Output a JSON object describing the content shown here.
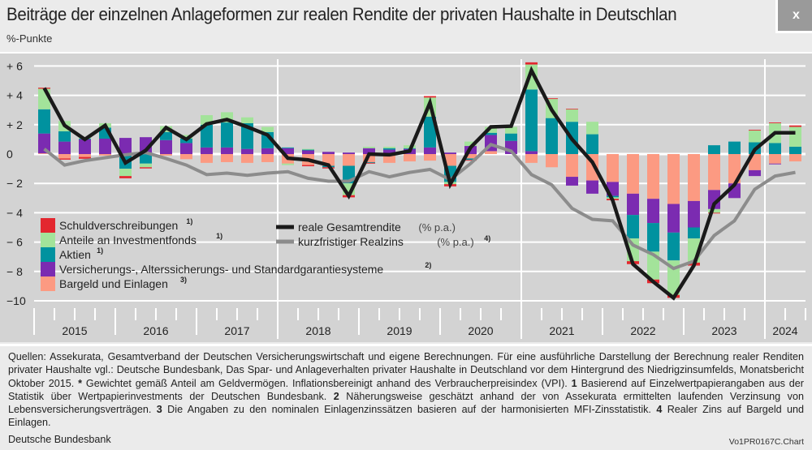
{
  "header": {
    "title": "Beiträge der einzelnen Anlageformen zur realen Rendite der privaten Haushalte in Deutschlan",
    "close_label": "x"
  },
  "chart_data": {
    "type": "bar",
    "stacked": true,
    "title": "Beiträge der einzelnen Anlageformen zur realen Rendite der privaten Haushalte in Deutschlan",
    "ylabel": "%-Punkte",
    "ylim": [
      -10,
      6
    ],
    "yticks": [
      6,
      4,
      2,
      0,
      -2,
      -4,
      -6,
      -8,
      -10
    ],
    "ytick_labels": [
      "+ 6",
      "+ 4",
      "+ 2",
      "0",
      "− 2",
      "− 4",
      "− 6",
      "− 8",
      "−10"
    ],
    "years": [
      "2015",
      "2016",
      "2017",
      "2018",
      "2019",
      "2020",
      "2021",
      "2022",
      "2023",
      "2024"
    ],
    "categories": [
      "2015Q1",
      "2015Q2",
      "2015Q3",
      "2015Q4",
      "2016Q1",
      "2016Q2",
      "2016Q3",
      "2016Q4",
      "2017Q1",
      "2017Q2",
      "2017Q3",
      "2017Q4",
      "2018Q1",
      "2018Q2",
      "2018Q3",
      "2018Q4",
      "2019Q1",
      "2019Q2",
      "2019Q3",
      "2019Q4",
      "2020Q1",
      "2020Q2",
      "2020Q3",
      "2020Q4",
      "2021Q1",
      "2021Q2",
      "2021Q3",
      "2021Q4",
      "2022Q1",
      "2022Q2",
      "2022Q3",
      "2022Q4",
      "2023Q1",
      "2023Q2",
      "2023Q3",
      "2023Q4",
      "2024Q1",
      "2024Q2"
    ],
    "grid": true,
    "legend_placement": "bottom-left",
    "series": [
      {
        "name": "Bargeld und Einlagen",
        "sup": "3)",
        "color": "#fc9a82",
        "values": [
          0.05,
          -0.3,
          -0.2,
          -0.1,
          0,
          0,
          -0.1,
          -0.35,
          -0.6,
          -0.55,
          -0.6,
          -0.55,
          -0.65,
          -0.75,
          -0.8,
          -0.8,
          -0.55,
          -0.6,
          -0.5,
          -0.45,
          -0.8,
          -0.3,
          0.2,
          0,
          -0.6,
          -0.9,
          -1.55,
          -1.8,
          -1.9,
          -2.7,
          -3.05,
          -3.4,
          -3.2,
          -2.45,
          -2.0,
          -1.1,
          -0.65,
          -0.5
        ]
      },
      {
        "name": "Versicherungs-, Alterssicherungs- und Standardgarantiesysteme",
        "sup": "2)",
        "color": "#7b2bb1",
        "values": [
          1.35,
          0.85,
          1.0,
          1.05,
          1.1,
          1.15,
          0.95,
          0.75,
          0.45,
          0.45,
          0.35,
          0.4,
          0.4,
          0.25,
          0.15,
          0.1,
          0.4,
          0.3,
          0.35,
          0.45,
          0.1,
          0.55,
          1.1,
          0.9,
          0.2,
          0,
          -0.6,
          -0.9,
          -0.95,
          -1.45,
          -1.65,
          -1.95,
          -1.8,
          -1.3,
          -1.0,
          -0.4,
          -0.05,
          0
        ]
      },
      {
        "name": "Aktien",
        "sup": "1)",
        "color": "#00929f",
        "values": [
          1.65,
          0.7,
          0.05,
          0.75,
          -1.0,
          -0.65,
          0.55,
          0.3,
          1.55,
          1.7,
          1.75,
          1.1,
          0.05,
          0.05,
          -0.1,
          -1.2,
          -0.05,
          0.1,
          0.05,
          2.1,
          -1.1,
          -0.1,
          0.15,
          0.5,
          4.2,
          2.45,
          2.2,
          1.35,
          -0.1,
          -1.6,
          -1.95,
          -1.9,
          -0.75,
          0.6,
          0.85,
          0.8,
          0.75,
          0.5
        ]
      },
      {
        "name": "Anteile an Investmentfonds",
        "sup": "1)",
        "color": "#a3e39a",
        "values": [
          1.4,
          0.7,
          0.05,
          0.3,
          -0.5,
          -0.25,
          0.4,
          0.25,
          0.65,
          0.7,
          0.4,
          0.35,
          -0.1,
          0.05,
          0,
          -0.8,
          0.1,
          0.1,
          0.2,
          1.3,
          -0.15,
          0.3,
          0.4,
          0.45,
          1.7,
          1.3,
          0.85,
          0.85,
          -0.1,
          -1.55,
          -1.9,
          -2.35,
          -1.65,
          -0.25,
          0,
          0.8,
          1.35,
          1.35
        ]
      },
      {
        "name": "Schuldverschreibungen",
        "sup": "1)",
        "color": "#e3272f",
        "values": [
          0.07,
          -0.08,
          -0.12,
          0,
          -0.15,
          -0.08,
          0,
          0,
          0,
          0,
          0,
          0,
          0,
          -0.08,
          -0.08,
          -0.15,
          -0.05,
          0,
          0,
          0.1,
          -0.15,
          -0.05,
          0,
          0,
          0.15,
          0.05,
          0.03,
          0,
          -0.1,
          -0.2,
          -0.25,
          -0.2,
          -0.2,
          -0.05,
          0,
          0.05,
          0.05,
          0.1
        ]
      }
    ],
    "lines": [
      {
        "name": "reale Gesamtrendite",
        "unit": "(% p.a.)",
        "sup": "",
        "color": "#1a1a1a",
        "values": [
          4.5,
          1.95,
          1.0,
          1.95,
          -0.6,
          0.25,
          1.8,
          1.0,
          2.05,
          2.35,
          1.85,
          1.3,
          -0.28,
          -0.4,
          -0.75,
          -2.85,
          0.0,
          -0.05,
          0.2,
          3.5,
          -2.05,
          0.45,
          1.85,
          1.9,
          5.7,
          3.0,
          1.0,
          -0.55,
          -3.15,
          -7.5,
          -8.7,
          -9.8,
          -7.6,
          -3.4,
          -2.1,
          0.3,
          1.45,
          1.45
        ]
      },
      {
        "name": "kurzfristiger Realzins",
        "unit": "(% p.a.)",
        "sup": "4)",
        "color": "#8c8c8c",
        "values": [
          0.35,
          -0.75,
          -0.45,
          -0.25,
          -0.05,
          0.1,
          -0.3,
          -0.75,
          -1.4,
          -1.3,
          -1.45,
          -1.3,
          -1.2,
          -1.65,
          -1.85,
          -1.85,
          -1.2,
          -1.55,
          -1.25,
          -1.05,
          -1.75,
          -0.65,
          0.65,
          0.2,
          -1.4,
          -2.1,
          -3.7,
          -4.45,
          -4.55,
          -6.2,
          -6.85,
          -7.8,
          -7.3,
          -5.55,
          -4.55,
          -2.4,
          -1.5,
          -1.25
        ]
      }
    ]
  },
  "notes": {
    "segments": [
      {
        "text": "Quellen: Assekurata, Gesamtverband der Deutschen Versicherungswirtschaft und eigene Berechnungen. Für eine ausführliche Darstellung der Berechnung realer Renditen privater Haushalte vgl.: Deutsche Bundesbank, Das Spar- und Anlageverhalten privater Haushalte in Deutschland vor dem Hintergrund des Niedrigzinsumfelds, Monatsbericht Oktober 2015. ",
        "bold": false
      },
      {
        "text": "*",
        "bold": true
      },
      {
        "text": " Gewichtet gemäß Anteil am Geldvermögen. Inflationsbereinigt anhand des Verbraucherpreisindex (VPI). ",
        "bold": false
      },
      {
        "text": "1",
        "bold": true
      },
      {
        "text": " Basierend auf Einzelwertpapierangaben aus der Statistik über Wertpapierinvestments der Deutschen Bundesbank. ",
        "bold": false
      },
      {
        "text": "2",
        "bold": true
      },
      {
        "text": " Näherungsweise geschätzt anhand der von Assekurata ermittelten laufenden Verzinsung von Lebensversicherungsverträgen. ",
        "bold": false
      },
      {
        "text": "3",
        "bold": true
      },
      {
        "text": " Die Angaben zu den nominalen Einlagenzinssätzen basieren auf der harmonisierten MFI-Zinsstatistik. ",
        "bold": false
      },
      {
        "text": "4",
        "bold": true
      },
      {
        "text": " Realer Zins auf Bargeld und Einlagen.",
        "bold": false
      }
    ],
    "source": "Deutsche Bundesbank",
    "chart_code": "Vo1PR0167C.Chart"
  }
}
